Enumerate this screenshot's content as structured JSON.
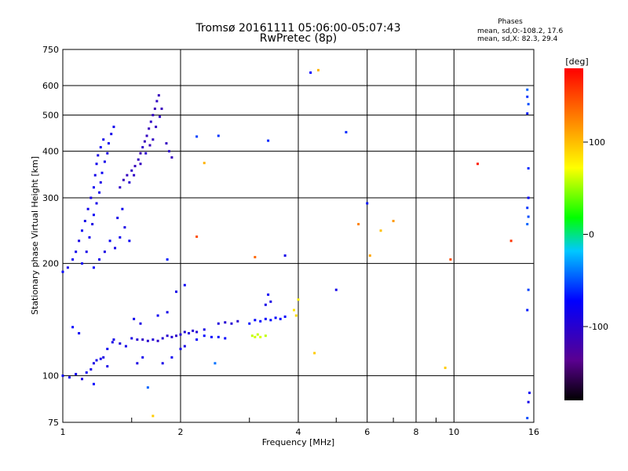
{
  "header": {
    "title_line1": "Tromsø 20161111 05:06:00-05:07:43",
    "title_line2": "RwPretec (8p)"
  },
  "stats": {
    "label": "Phases",
    "line1": "mean, sd,O:-108.2, 17.6",
    "line2": "mean, sd,X: 82.3, 29.4"
  },
  "colorbar": {
    "label": "[deg]",
    "range": [
      -180,
      180
    ],
    "ticks": [
      100,
      0,
      -100
    ],
    "tick_labels": [
      "100",
      "0",
      "-100"
    ]
  },
  "chart_data": {
    "type": "scatter",
    "xlabel": "Frequency [MHz]",
    "ylabel": "Stationary phase Virtual Height [km]",
    "xscale": "log",
    "yscale": "log",
    "xlim": [
      1,
      16
    ],
    "ylim": [
      75,
      750
    ],
    "xticks": [
      1,
      2,
      4,
      6,
      8,
      10,
      16
    ],
    "xtick_labels": [
      "1",
      "2",
      "4",
      "6",
      "8",
      "10",
      "16"
    ],
    "yticks": [
      75,
      100,
      200,
      300,
      400,
      500,
      600,
      750
    ],
    "ytick_labels": [
      "75",
      "100",
      "200",
      "300",
      "400",
      "500",
      "600",
      "750"
    ],
    "grid": true,
    "color_variable": "phase [deg]",
    "points": [
      [
        1.0,
        190,
        -100
      ],
      [
        1.03,
        195,
        -110
      ],
      [
        1.06,
        205,
        -105
      ],
      [
        1.08,
        215,
        -108
      ],
      [
        1.1,
        230,
        -112
      ],
      [
        1.12,
        245,
        -105
      ],
      [
        1.14,
        260,
        -110
      ],
      [
        1.16,
        280,
        -108
      ],
      [
        1.18,
        300,
        -112
      ],
      [
        1.2,
        320,
        -105
      ],
      [
        1.21,
        345,
        -110
      ],
      [
        1.22,
        370,
        -108
      ],
      [
        1.23,
        390,
        -112
      ],
      [
        1.25,
        410,
        -106
      ],
      [
        1.27,
        430,
        -110
      ],
      [
        1.12,
        200,
        -105
      ],
      [
        1.15,
        215,
        -110
      ],
      [
        1.17,
        235,
        -108
      ],
      [
        1.19,
        255,
        -112
      ],
      [
        1.2,
        270,
        -104
      ],
      [
        1.22,
        290,
        -110
      ],
      [
        1.24,
        310,
        -107
      ],
      [
        1.25,
        330,
        -111
      ],
      [
        1.26,
        350,
        -105
      ],
      [
        1.28,
        375,
        -109
      ],
      [
        1.3,
        395,
        -113
      ],
      [
        1.31,
        420,
        -106
      ],
      [
        1.33,
        445,
        -110
      ],
      [
        1.35,
        465,
        -108
      ],
      [
        1.2,
        195,
        -100
      ],
      [
        1.24,
        205,
        -108
      ],
      [
        1.28,
        215,
        -112
      ],
      [
        1.32,
        230,
        -105
      ],
      [
        1.36,
        220,
        -110
      ],
      [
        1.4,
        235,
        -108
      ],
      [
        1.44,
        250,
        -112
      ],
      [
        1.48,
        230,
        -105
      ],
      [
        1.38,
        265,
        -110
      ],
      [
        1.42,
        280,
        -108
      ],
      [
        1.4,
        320,
        -125
      ],
      [
        1.43,
        335,
        -130
      ],
      [
        1.46,
        345,
        -128
      ],
      [
        1.5,
        355,
        -125
      ],
      [
        1.53,
        365,
        -130
      ],
      [
        1.56,
        380,
        -128
      ],
      [
        1.58,
        395,
        -132
      ],
      [
        1.6,
        410,
        -125
      ],
      [
        1.62,
        425,
        -130
      ],
      [
        1.64,
        440,
        -128
      ],
      [
        1.66,
        460,
        -130
      ],
      [
        1.68,
        480,
        -125
      ],
      [
        1.7,
        500,
        -128
      ],
      [
        1.72,
        520,
        -132
      ],
      [
        1.74,
        545,
        -126
      ],
      [
        1.76,
        565,
        -130
      ],
      [
        1.48,
        330,
        -120
      ],
      [
        1.52,
        345,
        -125
      ],
      [
        1.58,
        370,
        -128
      ],
      [
        1.63,
        395,
        -122
      ],
      [
        1.67,
        415,
        -130
      ],
      [
        1.7,
        430,
        -126
      ],
      [
        1.73,
        465,
        -128
      ],
      [
        1.77,
        495,
        -124
      ],
      [
        1.79,
        520,
        -130
      ],
      [
        1.84,
        420,
        -128
      ],
      [
        1.87,
        400,
        -125
      ],
      [
        1.9,
        385,
        -130
      ],
      [
        1.0,
        100,
        -105
      ],
      [
        1.04,
        99,
        -110
      ],
      [
        1.08,
        101,
        -108
      ],
      [
        1.12,
        98,
        -112
      ],
      [
        1.15,
        102,
        -105
      ],
      [
        1.18,
        104,
        -110
      ],
      [
        1.22,
        110,
        -108
      ],
      [
        1.27,
        112,
        -112
      ],
      [
        1.3,
        118,
        -106
      ],
      [
        1.34,
        123,
        -110
      ],
      [
        1.06,
        135,
        -100
      ],
      [
        1.1,
        130,
        -105
      ],
      [
        1.35,
        125,
        -110
      ],
      [
        1.4,
        122,
        -115
      ],
      [
        1.45,
        120,
        -110
      ],
      [
        1.5,
        126,
        -112
      ],
      [
        1.55,
        125,
        -120
      ],
      [
        1.6,
        125,
        -125
      ],
      [
        1.65,
        124,
        -122
      ],
      [
        1.7,
        125,
        -118
      ],
      [
        1.75,
        124,
        -125
      ],
      [
        1.8,
        126,
        -120
      ],
      [
        1.85,
        128,
        -122
      ],
      [
        1.9,
        127,
        -118
      ],
      [
        1.95,
        128,
        -125
      ],
      [
        2.0,
        129,
        -120
      ],
      [
        2.05,
        131,
        -118
      ],
      [
        2.1,
        130,
        -115
      ],
      [
        2.15,
        132,
        -120
      ],
      [
        2.2,
        131,
        -118
      ],
      [
        2.3,
        133,
        -112
      ],
      [
        2.2,
        125,
        -100
      ],
      [
        2.3,
        128,
        -98
      ],
      [
        2.4,
        127,
        -102
      ],
      [
        2.5,
        127,
        -96
      ],
      [
        2.6,
        126,
        -100
      ],
      [
        2.5,
        138,
        -115
      ],
      [
        2.6,
        139,
        -120
      ],
      [
        2.7,
        138,
        -118
      ],
      [
        2.8,
        140,
        -122
      ],
      [
        3.0,
        138,
        -95
      ],
      [
        3.1,
        141,
        -100
      ],
      [
        3.2,
        140,
        -98
      ],
      [
        3.3,
        142,
        -102
      ],
      [
        3.4,
        141,
        -96
      ],
      [
        3.5,
        143,
        -100
      ],
      [
        3.6,
        142,
        -98
      ],
      [
        3.7,
        144,
        -102
      ],
      [
        3.05,
        128,
        60
      ],
      [
        3.1,
        127,
        65
      ],
      [
        3.15,
        129,
        62
      ],
      [
        3.2,
        127,
        68
      ],
      [
        3.3,
        128,
        60
      ],
      [
        3.3,
        155,
        -110
      ],
      [
        3.35,
        165,
        -105
      ],
      [
        3.4,
        158,
        -112
      ],
      [
        3.9,
        150,
        90
      ],
      [
        3.95,
        145,
        95
      ],
      [
        4.0,
        160,
        85
      ],
      [
        4.4,
        115,
        100
      ],
      [
        1.2,
        108,
        -112
      ],
      [
        1.25,
        111,
        -108
      ],
      [
        1.3,
        106,
        -110
      ],
      [
        1.55,
        108,
        -112
      ],
      [
        1.6,
        112,
        -108
      ],
      [
        1.8,
        108,
        -110
      ],
      [
        1.9,
        112,
        -106
      ],
      [
        2.0,
        118,
        -110
      ],
      [
        2.05,
        120,
        -112
      ],
      [
        2.45,
        108,
        -55
      ],
      [
        2.05,
        175,
        -105
      ],
      [
        1.95,
        168,
        -110
      ],
      [
        1.2,
        95,
        -100
      ],
      [
        1.65,
        93,
        -60
      ],
      [
        1.7,
        78,
        100
      ],
      [
        1.52,
        142,
        -108
      ],
      [
        1.58,
        138,
        -112
      ],
      [
        1.75,
        145,
        -106
      ],
      [
        1.85,
        148,
        -110
      ],
      [
        4.3,
        650,
        -100
      ],
      [
        4.5,
        660,
        110
      ],
      [
        5.3,
        450,
        -85
      ],
      [
        6.0,
        290,
        -95
      ],
      [
        5.0,
        170,
        -110
      ],
      [
        5.7,
        255,
        130
      ],
      [
        6.1,
        210,
        115
      ],
      [
        6.5,
        245,
        105
      ],
      [
        7.0,
        260,
        120
      ],
      [
        9.8,
        205,
        150
      ],
      [
        11.5,
        370,
        170
      ],
      [
        14.0,
        230,
        160
      ],
      [
        9.5,
        105,
        100
      ],
      [
        3.1,
        208,
        140
      ],
      [
        3.7,
        210,
        -110
      ],
      [
        3.35,
        427,
        -85
      ],
      [
        2.3,
        372,
        110
      ],
      [
        2.2,
        236,
        150
      ],
      [
        1.85,
        205,
        -90
      ],
      [
        2.5,
        440,
        -80
      ],
      [
        2.2,
        438,
        -75
      ],
      [
        15.4,
        585,
        -60
      ],
      [
        15.4,
        560,
        -80
      ],
      [
        15.5,
        535,
        -70
      ],
      [
        15.4,
        505,
        -90
      ],
      [
        15.5,
        360,
        -85
      ],
      [
        15.5,
        300,
        -100
      ],
      [
        15.4,
        282,
        -80
      ],
      [
        15.5,
        267,
        -70
      ],
      [
        15.4,
        255,
        -60
      ],
      [
        15.5,
        170,
        -75
      ],
      [
        15.4,
        150,
        -90
      ],
      [
        15.6,
        90,
        -105
      ],
      [
        15.5,
        85,
        -110
      ],
      [
        15.4,
        77,
        -70
      ]
    ]
  }
}
